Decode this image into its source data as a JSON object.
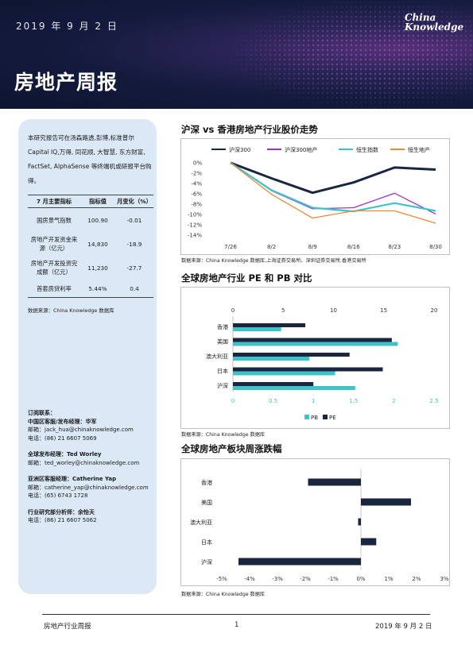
{
  "header": {
    "date": "2019 年 9 月 2 日",
    "title": "房地产周报",
    "logo_line1": "China",
    "logo_line2": "Knowledge"
  },
  "sidebar": {
    "intro": "本研究报告可在汤森路透,彭博,标准普尔Capital IQ,万得, 同花顺, 大智慧, 东方财富, FactSet, AlphaSense 等终端机或研报平台购得。",
    "table": {
      "headers": [
        "7 月主要指标",
        "指标值",
        "月变化（%）"
      ],
      "rows": [
        [
          "国房景气指数",
          "100.90",
          "-0.01"
        ],
        [
          "房地产开发资金来源（亿元）",
          "14,830",
          "-18.9"
        ],
        [
          "房地产开发投资完成额（亿元）",
          "11,230",
          "-27.7"
        ],
        [
          "首套房贷利率",
          "5.44%",
          "0.4"
        ]
      ]
    },
    "source": "数据来源：China Knowledge 数据库",
    "contacts": [
      {
        "lines": [
          "订阅联系：",
          "中国区客服/发布经理：华军",
          "邮箱：jack_hua@chinaknowledge.com",
          "电话：(86) 21 6607 5069"
        ],
        "bold": [
          true,
          true,
          false,
          false
        ]
      },
      {
        "lines": [
          "全球发布经理：Ted Worley",
          "邮箱：ted_worley@chinaknowledge.com"
        ],
        "bold": [
          true,
          false
        ]
      },
      {
        "lines": [
          "亚洲区客服经理：Catherine Yap",
          "邮箱：catherine_yap@chinaknowledge.com",
          "电话：(65) 6743 1728"
        ],
        "bold": [
          true,
          false,
          false
        ]
      },
      {
        "lines": [
          "行业研究部分析师：余怡天",
          "电话：(86) 21 6607 5062"
        ],
        "bold": [
          true,
          false
        ]
      }
    ]
  },
  "sections": {
    "chart1_title": "沪深 vs 香港房地产行业股价走势",
    "chart1_source": "数据来源：China Knowledge 数据库,上海证券交易所、深圳证券交易所,香港交易所",
    "chart2_title": "全球房地产行业 PE 和 PB 对比",
    "chart2_source": "数据来源：China Knowledge 数据库",
    "chart3_title": "全球房地产板块周涨跌幅",
    "chart3_source": "数据来源：China Knowledge 数据库"
  },
  "footer": {
    "left": "房地产行业周报",
    "page": "1",
    "right": "2019 年 9 月 2 日"
  },
  "chart_data": [
    {
      "type": "line",
      "categories": [
        "7/26",
        "8/2",
        "8/9",
        "8/16",
        "8/23",
        "8/30"
      ],
      "y_ticks": [
        "0%",
        "-2%",
        "-4%",
        "-6%",
        "-8%",
        "-10%",
        "-12%",
        "-14%"
      ],
      "ylim": [
        -14,
        0
      ],
      "legend": "top",
      "series": [
        {
          "name": "沪深300",
          "color": "#1a2540",
          "values": [
            0,
            -3.0,
            -5.8,
            -3.8,
            -0.9,
            -1.3
          ]
        },
        {
          "name": "沪深300地产",
          "color": "#a62fc4",
          "values": [
            0,
            -5.4,
            -8.9,
            -8.7,
            -5.9,
            -9.9
          ]
        },
        {
          "name": "恒生指数",
          "color": "#3fc3c9",
          "values": [
            0,
            -5.3,
            -8.7,
            -9.4,
            -7.8,
            -9.3
          ]
        },
        {
          "name": "恒生地产",
          "color": "#ec8a3a",
          "values": [
            0,
            -6.1,
            -10.7,
            -9.3,
            -9.3,
            -11.7
          ]
        }
      ]
    },
    {
      "type": "bar",
      "orientation": "horizontal",
      "categories": [
        "香港",
        "美国",
        "澳大利亚",
        "日本",
        "沪深"
      ],
      "pe_axis": {
        "ticks": [
          "0",
          "5",
          "10",
          "15",
          "20"
        ],
        "lim": [
          0,
          20
        ],
        "position": "top"
      },
      "pb_axis": {
        "ticks": [
          "0",
          "0.5",
          "1",
          "1.5",
          "2",
          "2.5"
        ],
        "lim": [
          0,
          2.5
        ],
        "position": "bottom"
      },
      "legend": "bottom",
      "series": [
        {
          "name": "PB",
          "color": "#3fc3c9",
          "axis": "pb",
          "values": [
            0.6,
            2.05,
            0.95,
            1.27,
            1.52
          ]
        },
        {
          "name": "PE",
          "color": "#1a2540",
          "axis": "pe",
          "values": [
            7.2,
            15.8,
            11.6,
            14.9,
            8.0
          ]
        }
      ]
    },
    {
      "type": "bar",
      "orientation": "horizontal",
      "categories": [
        "香港",
        "美国",
        "澳大利亚",
        "日本",
        "沪深"
      ],
      "x_ticks": [
        "-5%",
        "-4%",
        "-3%",
        "-2%",
        "-1%",
        "0%",
        "1%",
        "2%",
        "3%"
      ],
      "xlim": [
        -5,
        3
      ],
      "series": [
        {
          "name": "",
          "color": "#1a2540",
          "values": [
            -1.9,
            1.8,
            -0.1,
            0.55,
            -4.4
          ]
        }
      ]
    }
  ]
}
